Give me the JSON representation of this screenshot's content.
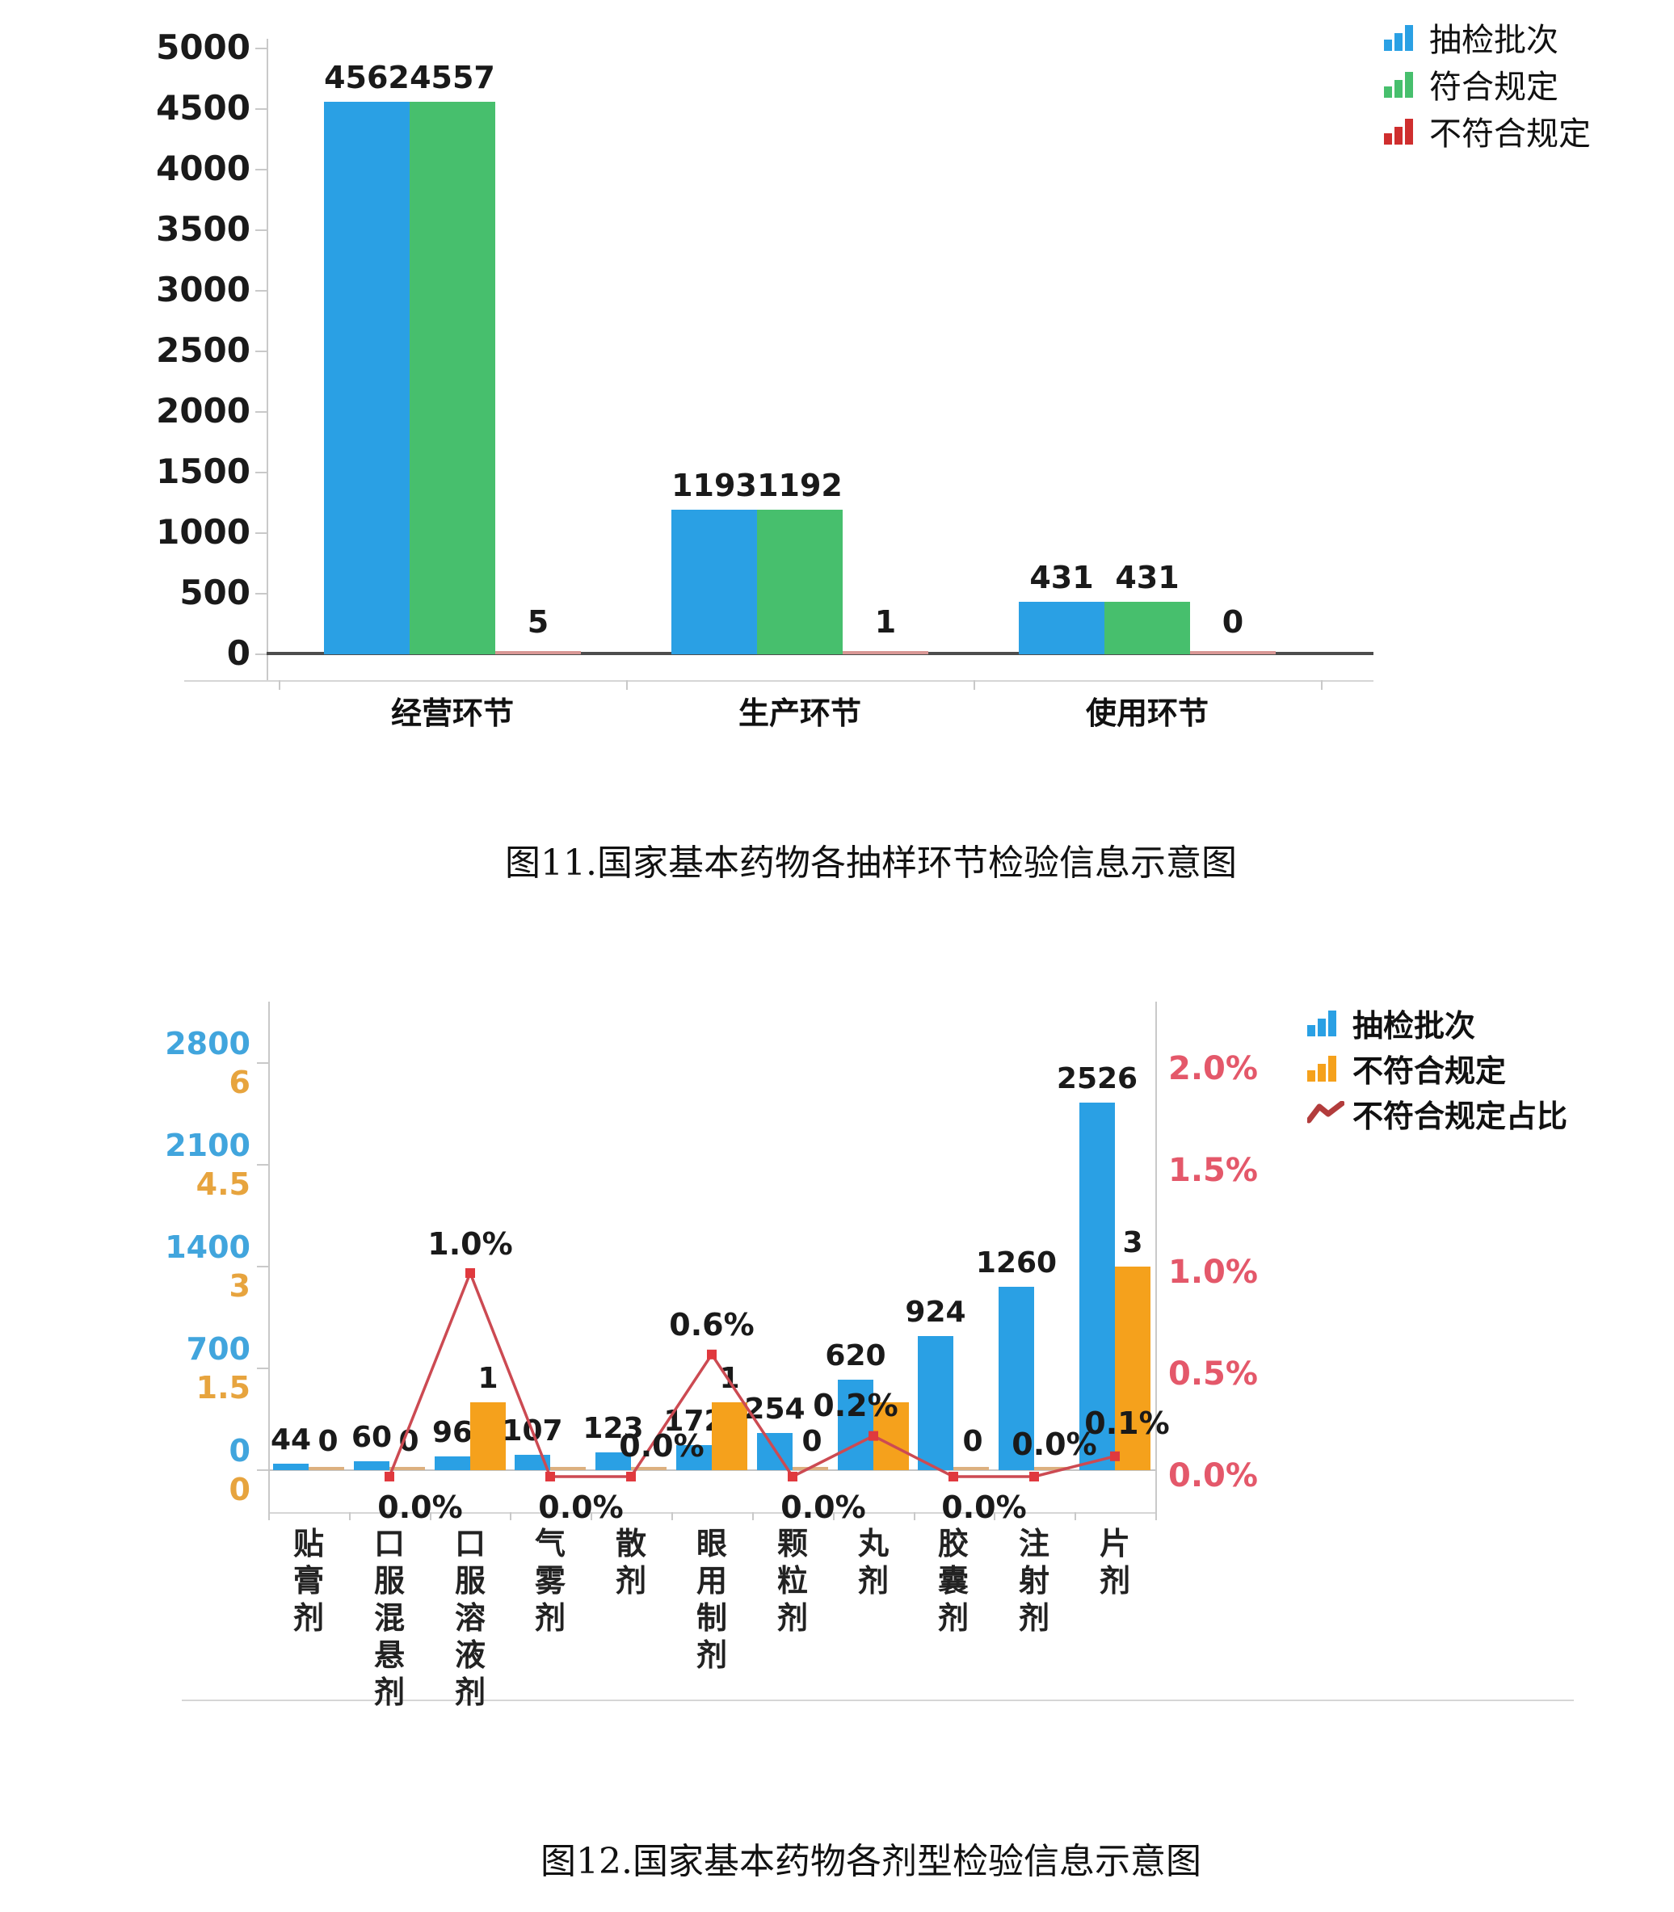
{
  "figure11": {
    "caption": "图11.国家基本药物各抽样环节检验信息示意图",
    "legend": [
      "抽检批次",
      "符合规定",
      "不符合规定"
    ],
    "chart_data": {
      "type": "bar",
      "categories": [
        "经营环节",
        "生产环节",
        "使用环节"
      ],
      "series": [
        {
          "name": "抽检批次",
          "color": "#2aa0e4",
          "values": [
            4562,
            1193,
            431
          ]
        },
        {
          "name": "符合规定",
          "color": "#47bf6d",
          "values": [
            4557,
            1192,
            431
          ]
        },
        {
          "name": "不符合规定",
          "color": "#cf2e2e",
          "values": [
            5,
            1,
            0
          ]
        }
      ],
      "ylim": [
        0,
        5000
      ],
      "ytick_step": 500,
      "grid": false,
      "legend_position": "top-right",
      "colors": {
        "zero_strip": "#d89795",
        "baseline": "#4d4d4d",
        "axis": "#c9c9c9",
        "value_label": "#1a1a1a"
      }
    }
  },
  "figure12": {
    "caption": "图12.国家基本药物各剂型检验信息示意图",
    "legend": [
      "抽检批次",
      "不符合规定",
      "不符合规定占比"
    ],
    "chart_data": {
      "type": "bar+line-combo",
      "categories": [
        "贴膏剂",
        "口服混悬剂",
        "口服溶液剂",
        "气雾剂",
        "散剂",
        "眼用制剂",
        "颗粒剂",
        "丸剂",
        "胶囊剂",
        "注射剂",
        "片剂"
      ],
      "series": [
        {
          "name": "抽检批次",
          "axis": "left-blue",
          "color": "#2aa0e4",
          "values": [
            44,
            60,
            96,
            107,
            123,
            172,
            254,
            620,
            924,
            1260,
            2526
          ],
          "labels": [
            "44",
            "60",
            "96",
            "107",
            "123",
            "172",
            "254",
            "620",
            "924",
            "1260",
            "2526"
          ]
        },
        {
          "name": "不符合规定",
          "axis": "left-orange",
          "color": "#f5a11c",
          "values": [
            0,
            0,
            1,
            0,
            0,
            1,
            0,
            1,
            0,
            0,
            3
          ],
          "labels": [
            "0",
            "0",
            "1",
            null,
            null,
            "1",
            "0",
            null,
            "0",
            null,
            "3"
          ]
        },
        {
          "name": "不符合规定占比",
          "axis": "right-percent",
          "color": "#cc4a52",
          "values": [
            null,
            0.0,
            1.0,
            0.0,
            0.0,
            0.6,
            0.0,
            0.2,
            0.0,
            0.0,
            0.1
          ],
          "labels": [
            null,
            "0.0%",
            "1.0%",
            "0.0%",
            "0.0%",
            "0.6%",
            "0.0%",
            "0.2%",
            "0.0%",
            "0.0%",
            "0.1%"
          ]
        }
      ],
      "left_axis_blue_ticks": [
        0,
        700,
        1400,
        2100,
        2800
      ],
      "left_axis_orange_ticks": [
        "0",
        "1.5",
        "3",
        "4.5",
        "6"
      ],
      "right_axis_ticks": [
        "0.0%",
        "0.5%",
        "1.0%",
        "1.5%",
        "2.0%"
      ],
      "left_blue_max": 2800,
      "left_orange_max": 6,
      "right_percent_max": 2.0,
      "grid": false,
      "legend_position": "top-right",
      "colors": {
        "blue_tick": "#41a5dd",
        "orange_tick": "#e7a43e",
        "pct_tick": "#e4586a",
        "zero_strip": "#dcb07f",
        "marker": "#e0393e",
        "axis": "#cfcfcf",
        "baseline": "#c4c4c4",
        "value_label": "#1a1a1a"
      }
    }
  }
}
